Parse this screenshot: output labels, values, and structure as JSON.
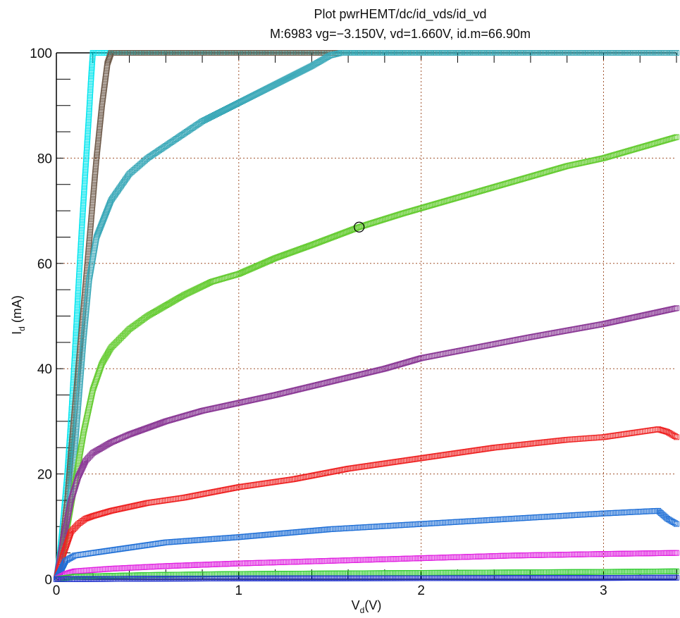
{
  "chart_data": {
    "type": "scatter",
    "title": "Plot pwrHEMT/dc/id_vds/id_vd",
    "subtitle": "M:6983 vg=−3.150V, vd=1.660V, id.m=66.90m",
    "xlabel": {
      "main": "V",
      "sub": "d",
      "unit": "(V)"
    },
    "ylabel": {
      "main": "I",
      "sub": "d",
      "unit": " (mA)"
    },
    "xlim": [
      0,
      3.4
    ],
    "ylim": [
      0,
      100
    ],
    "xticks": [
      0,
      1,
      2,
      3
    ],
    "yticks": [
      0,
      20,
      40,
      60,
      80,
      100
    ],
    "grid": true,
    "grid_color": "#a0522d",
    "marker": "open-square",
    "marker_point": {
      "x": 1.66,
      "y": 66.9
    },
    "series": [
      {
        "color": "#00e5ee",
        "points": [
          [
            0,
            0
          ],
          [
            0.02,
            5
          ],
          [
            0.04,
            12
          ],
          [
            0.06,
            20
          ],
          [
            0.08,
            30
          ],
          [
            0.1,
            42
          ],
          [
            0.12,
            55
          ],
          [
            0.14,
            67
          ],
          [
            0.16,
            78
          ],
          [
            0.18,
            89
          ],
          [
            0.19,
            95
          ],
          [
            0.2,
            100
          ],
          [
            3.4,
            100
          ]
        ]
      },
      {
        "color": "#6e5a4a",
        "points": [
          [
            0,
            0
          ],
          [
            0.03,
            6
          ],
          [
            0.06,
            15
          ],
          [
            0.08,
            24
          ],
          [
            0.11,
            36
          ],
          [
            0.14,
            48
          ],
          [
            0.17,
            60
          ],
          [
            0.2,
            72
          ],
          [
            0.22,
            80
          ],
          [
            0.25,
            90
          ],
          [
            0.28,
            98
          ],
          [
            0.3,
            100
          ],
          [
            3.4,
            100
          ]
        ]
      },
      {
        "color": "#3aa8b8",
        "points": [
          [
            0,
            0
          ],
          [
            0.05,
            8
          ],
          [
            0.09,
            20
          ],
          [
            0.12,
            33
          ],
          [
            0.15,
            46
          ],
          [
            0.18,
            57
          ],
          [
            0.22,
            65
          ],
          [
            0.3,
            72
          ],
          [
            0.4,
            77
          ],
          [
            0.5,
            80
          ],
          [
            0.65,
            83.5
          ],
          [
            0.8,
            87
          ],
          [
            1.0,
            90.5
          ],
          [
            1.2,
            94
          ],
          [
            1.4,
            97.5
          ],
          [
            1.5,
            99.5
          ],
          [
            1.56,
            100
          ],
          [
            3.4,
            100
          ]
        ]
      },
      {
        "color": "#66cc33",
        "points": [
          [
            0,
            0
          ],
          [
            0.05,
            8
          ],
          [
            0.1,
            18
          ],
          [
            0.15,
            28
          ],
          [
            0.2,
            36
          ],
          [
            0.25,
            41
          ],
          [
            0.3,
            44
          ],
          [
            0.4,
            47.5
          ],
          [
            0.5,
            50
          ],
          [
            0.7,
            54
          ],
          [
            0.85,
            56.5
          ],
          [
            1.0,
            58
          ],
          [
            1.2,
            61
          ],
          [
            1.4,
            63.5
          ],
          [
            1.66,
            66.9
          ],
          [
            1.9,
            69.5
          ],
          [
            2.2,
            72.5
          ],
          [
            2.5,
            75.5
          ],
          [
            2.8,
            78.5
          ],
          [
            3.0,
            80
          ],
          [
            3.2,
            82
          ],
          [
            3.4,
            84
          ]
        ]
      },
      {
        "color": "#8b3a96",
        "points": [
          [
            0,
            0
          ],
          [
            0.04,
            8
          ],
          [
            0.08,
            15
          ],
          [
            0.12,
            19.5
          ],
          [
            0.16,
            22.5
          ],
          [
            0.2,
            24
          ],
          [
            0.3,
            26
          ],
          [
            0.4,
            27.5
          ],
          [
            0.6,
            30
          ],
          [
            0.8,
            32
          ],
          [
            1.0,
            33.5
          ],
          [
            1.2,
            35
          ],
          [
            1.5,
            37.5
          ],
          [
            1.8,
            40
          ],
          [
            2.0,
            42
          ],
          [
            2.3,
            44
          ],
          [
            2.6,
            46
          ],
          [
            3.0,
            48.5
          ],
          [
            3.2,
            50
          ],
          [
            3.4,
            51.5
          ]
        ]
      },
      {
        "color": "#ee2222",
        "points": [
          [
            0,
            0
          ],
          [
            0.04,
            5
          ],
          [
            0.08,
            9
          ],
          [
            0.12,
            10.5
          ],
          [
            0.16,
            11.5
          ],
          [
            0.2,
            12
          ],
          [
            0.3,
            13
          ],
          [
            0.5,
            14.5
          ],
          [
            0.7,
            15.5
          ],
          [
            1.0,
            17.5
          ],
          [
            1.3,
            19
          ],
          [
            1.6,
            21
          ],
          [
            2.0,
            23
          ],
          [
            2.4,
            25
          ],
          [
            2.8,
            26.5
          ],
          [
            3.0,
            27
          ],
          [
            3.2,
            28
          ],
          [
            3.3,
            28.5
          ],
          [
            3.35,
            28
          ],
          [
            3.4,
            27
          ]
        ]
      },
      {
        "color": "#1f6fd6",
        "points": [
          [
            0,
            0
          ],
          [
            0.05,
            3.5
          ],
          [
            0.1,
            4.5
          ],
          [
            0.2,
            5
          ],
          [
            0.4,
            6
          ],
          [
            0.6,
            7
          ],
          [
            1.0,
            8
          ],
          [
            1.5,
            9.5
          ],
          [
            2.0,
            10.5
          ],
          [
            2.5,
            11.5
          ],
          [
            3.0,
            12.5
          ],
          [
            3.3,
            13
          ],
          [
            3.35,
            11.5
          ],
          [
            3.4,
            10.5
          ]
        ]
      },
      {
        "color": "#e020e0",
        "points": [
          [
            0,
            0
          ],
          [
            0.05,
            1
          ],
          [
            0.1,
            1.5
          ],
          [
            0.3,
            2
          ],
          [
            0.6,
            2.5
          ],
          [
            1.0,
            3
          ],
          [
            1.5,
            3.5
          ],
          [
            2.0,
            4
          ],
          [
            2.5,
            4.5
          ],
          [
            3.0,
            4.8
          ],
          [
            3.4,
            5
          ]
        ]
      },
      {
        "color": "#33cc33",
        "points": [
          [
            0,
            0
          ],
          [
            0.1,
            0.5
          ],
          [
            0.5,
            0.8
          ],
          [
            1.0,
            1
          ],
          [
            2.0,
            1.2
          ],
          [
            3.0,
            1.4
          ],
          [
            3.4,
            1.5
          ]
        ]
      },
      {
        "color": "#2233cc",
        "points": [
          [
            0,
            0
          ],
          [
            0.5,
            0.1
          ],
          [
            1.0,
            0.15
          ],
          [
            2.0,
            0.2
          ],
          [
            3.0,
            0.25
          ],
          [
            3.4,
            0.3
          ]
        ]
      }
    ]
  }
}
